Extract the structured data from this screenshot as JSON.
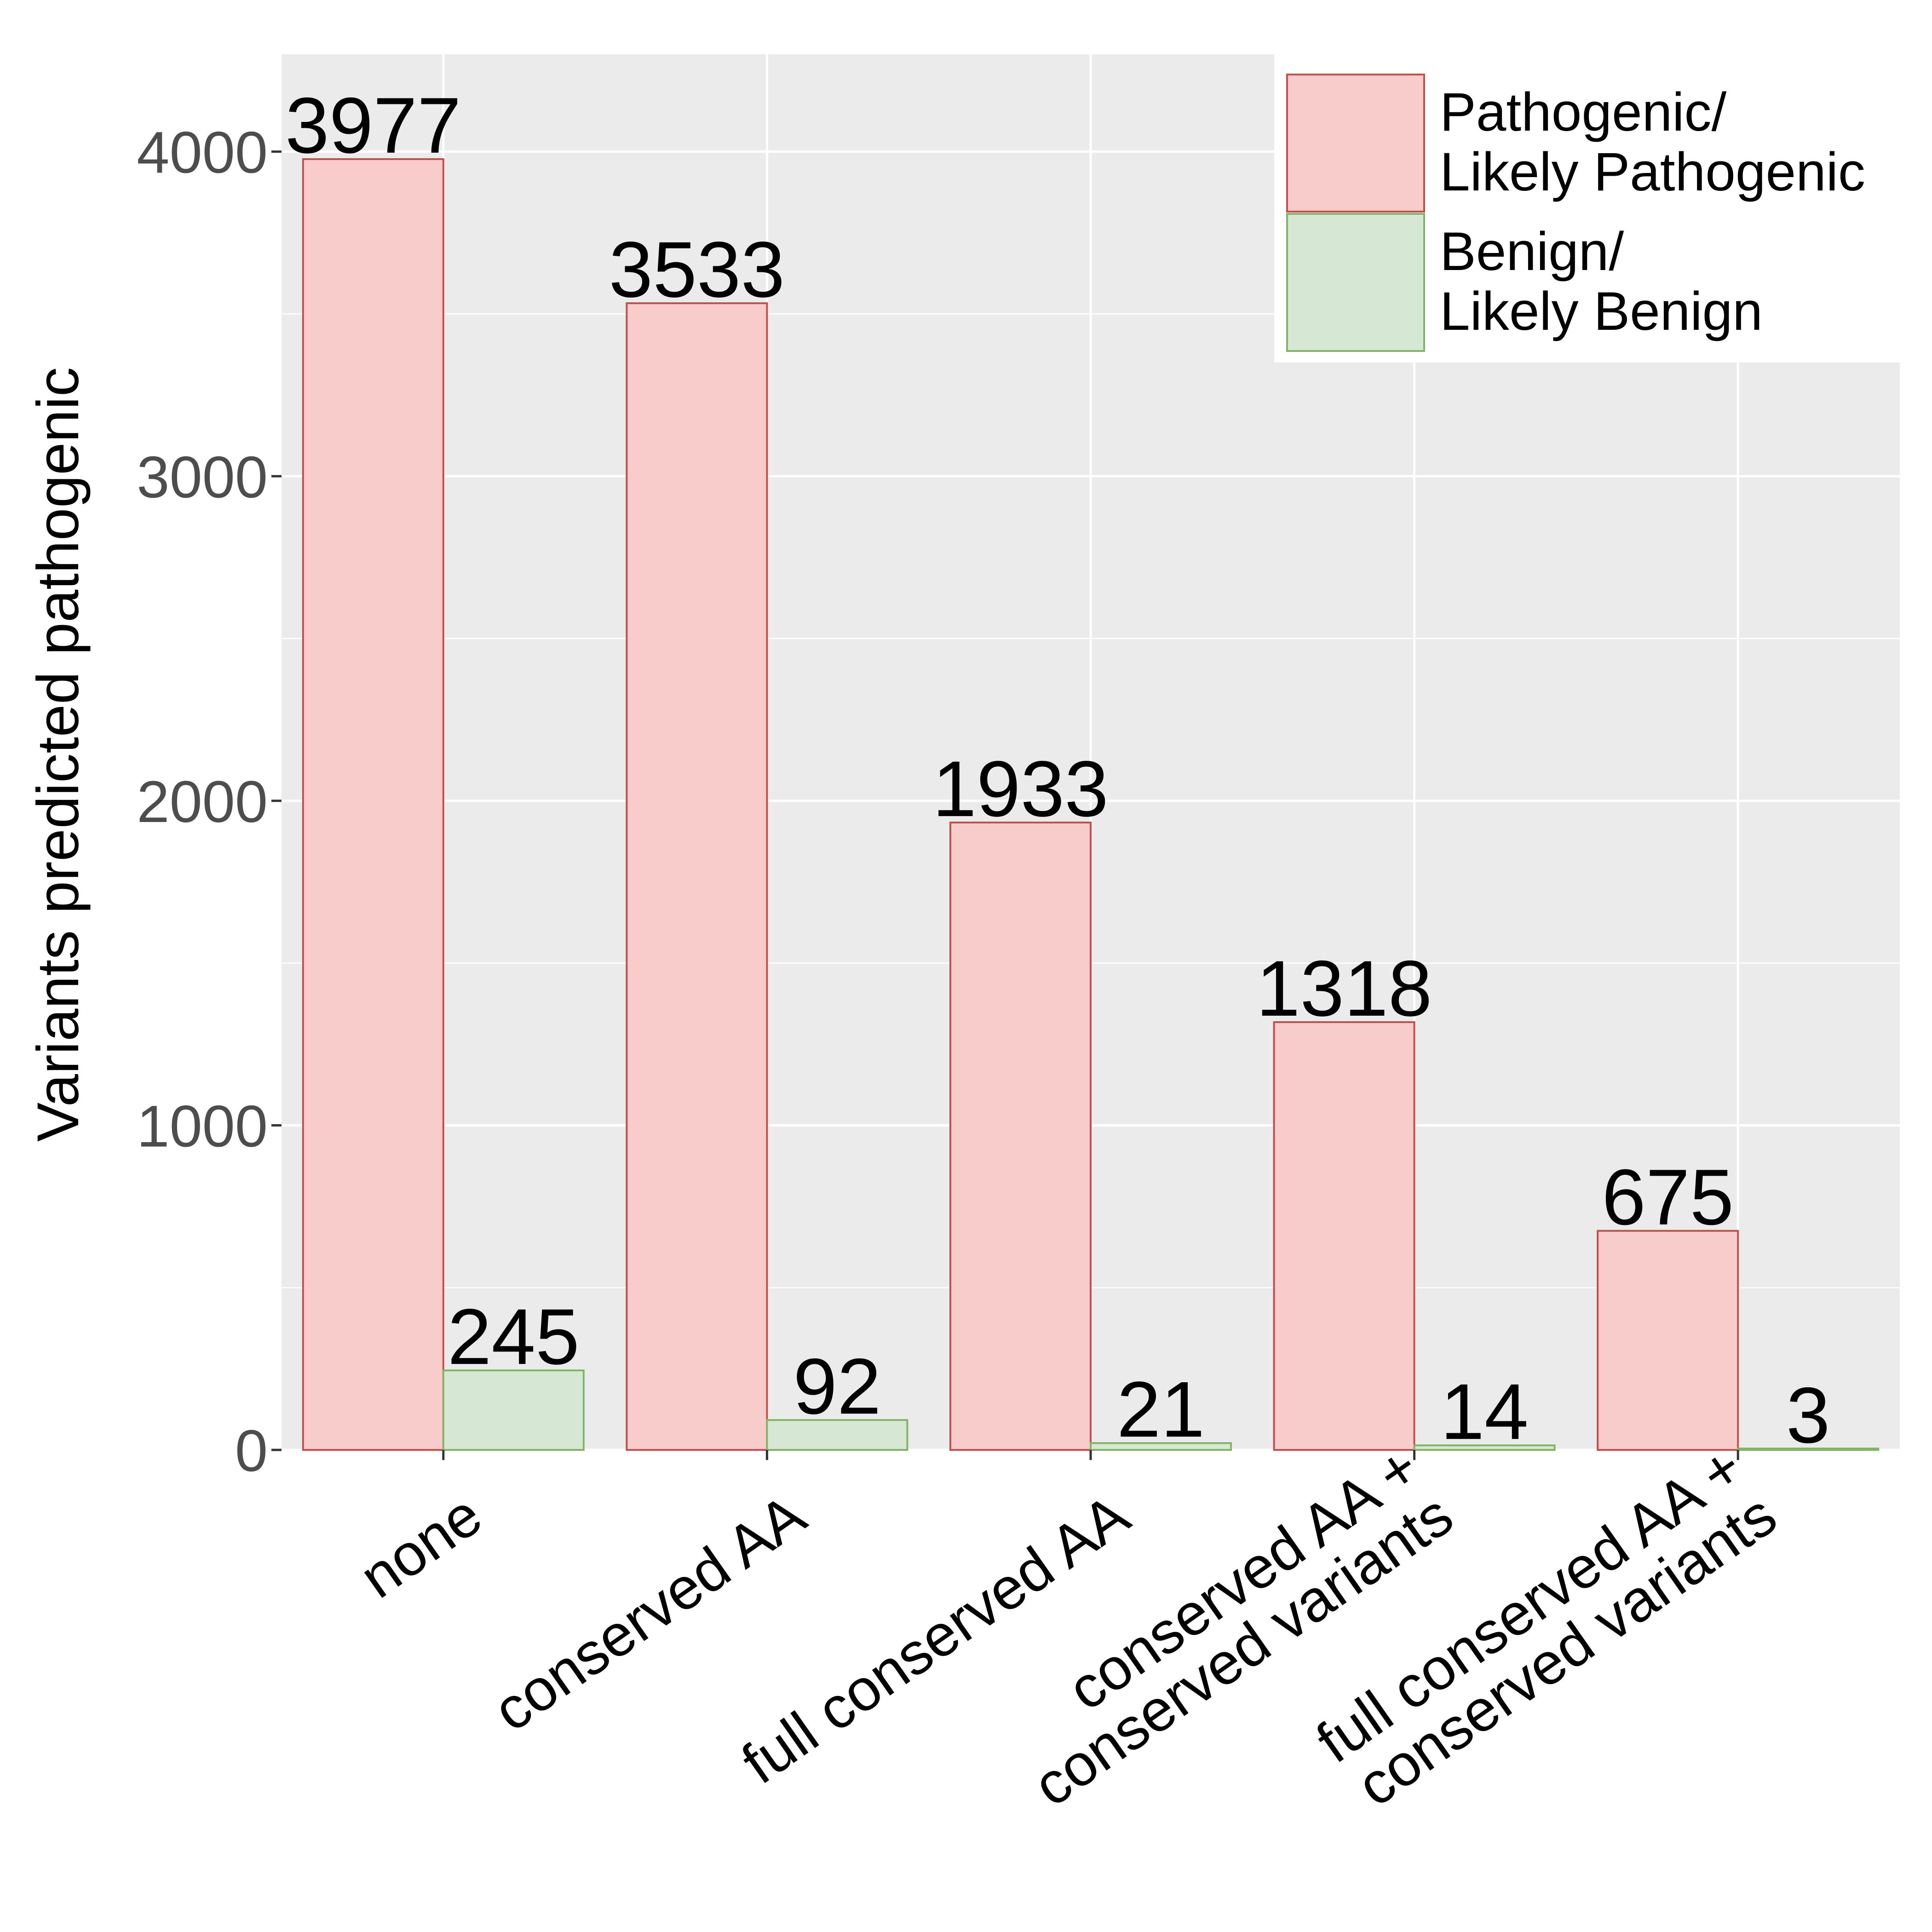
{
  "chart_data": {
    "type": "bar",
    "categories": [
      [
        "none"
      ],
      [
        "conserved AA"
      ],
      [
        "full conserved AA"
      ],
      [
        "conserved AA +",
        "conserved variants"
      ],
      [
        "full conserved AA +",
        "conserved variants"
      ]
    ],
    "series": [
      {
        "name": [
          "Pathogenic/",
          "Likely Pathogenic"
        ],
        "values": [
          3977,
          3533,
          1933,
          1318,
          675
        ],
        "fill": "#f7cccb",
        "stroke": "#c0504d"
      },
      {
        "name": [
          "Benign/",
          "Likely Benign"
        ],
        "values": [
          245,
          92,
          21,
          14,
          3
        ],
        "fill": "#d6e8d4",
        "stroke": "#82b366"
      }
    ],
    "ylabel": "Variants predicted pathogenic",
    "xlabel": "",
    "ylim": [
      0,
      4300
    ],
    "yticks": [
      0,
      1000,
      2000,
      3000,
      4000
    ],
    "grid": true,
    "panel_background": "#ebebeb",
    "legend_position": "top-right",
    "value_labels": true
  }
}
